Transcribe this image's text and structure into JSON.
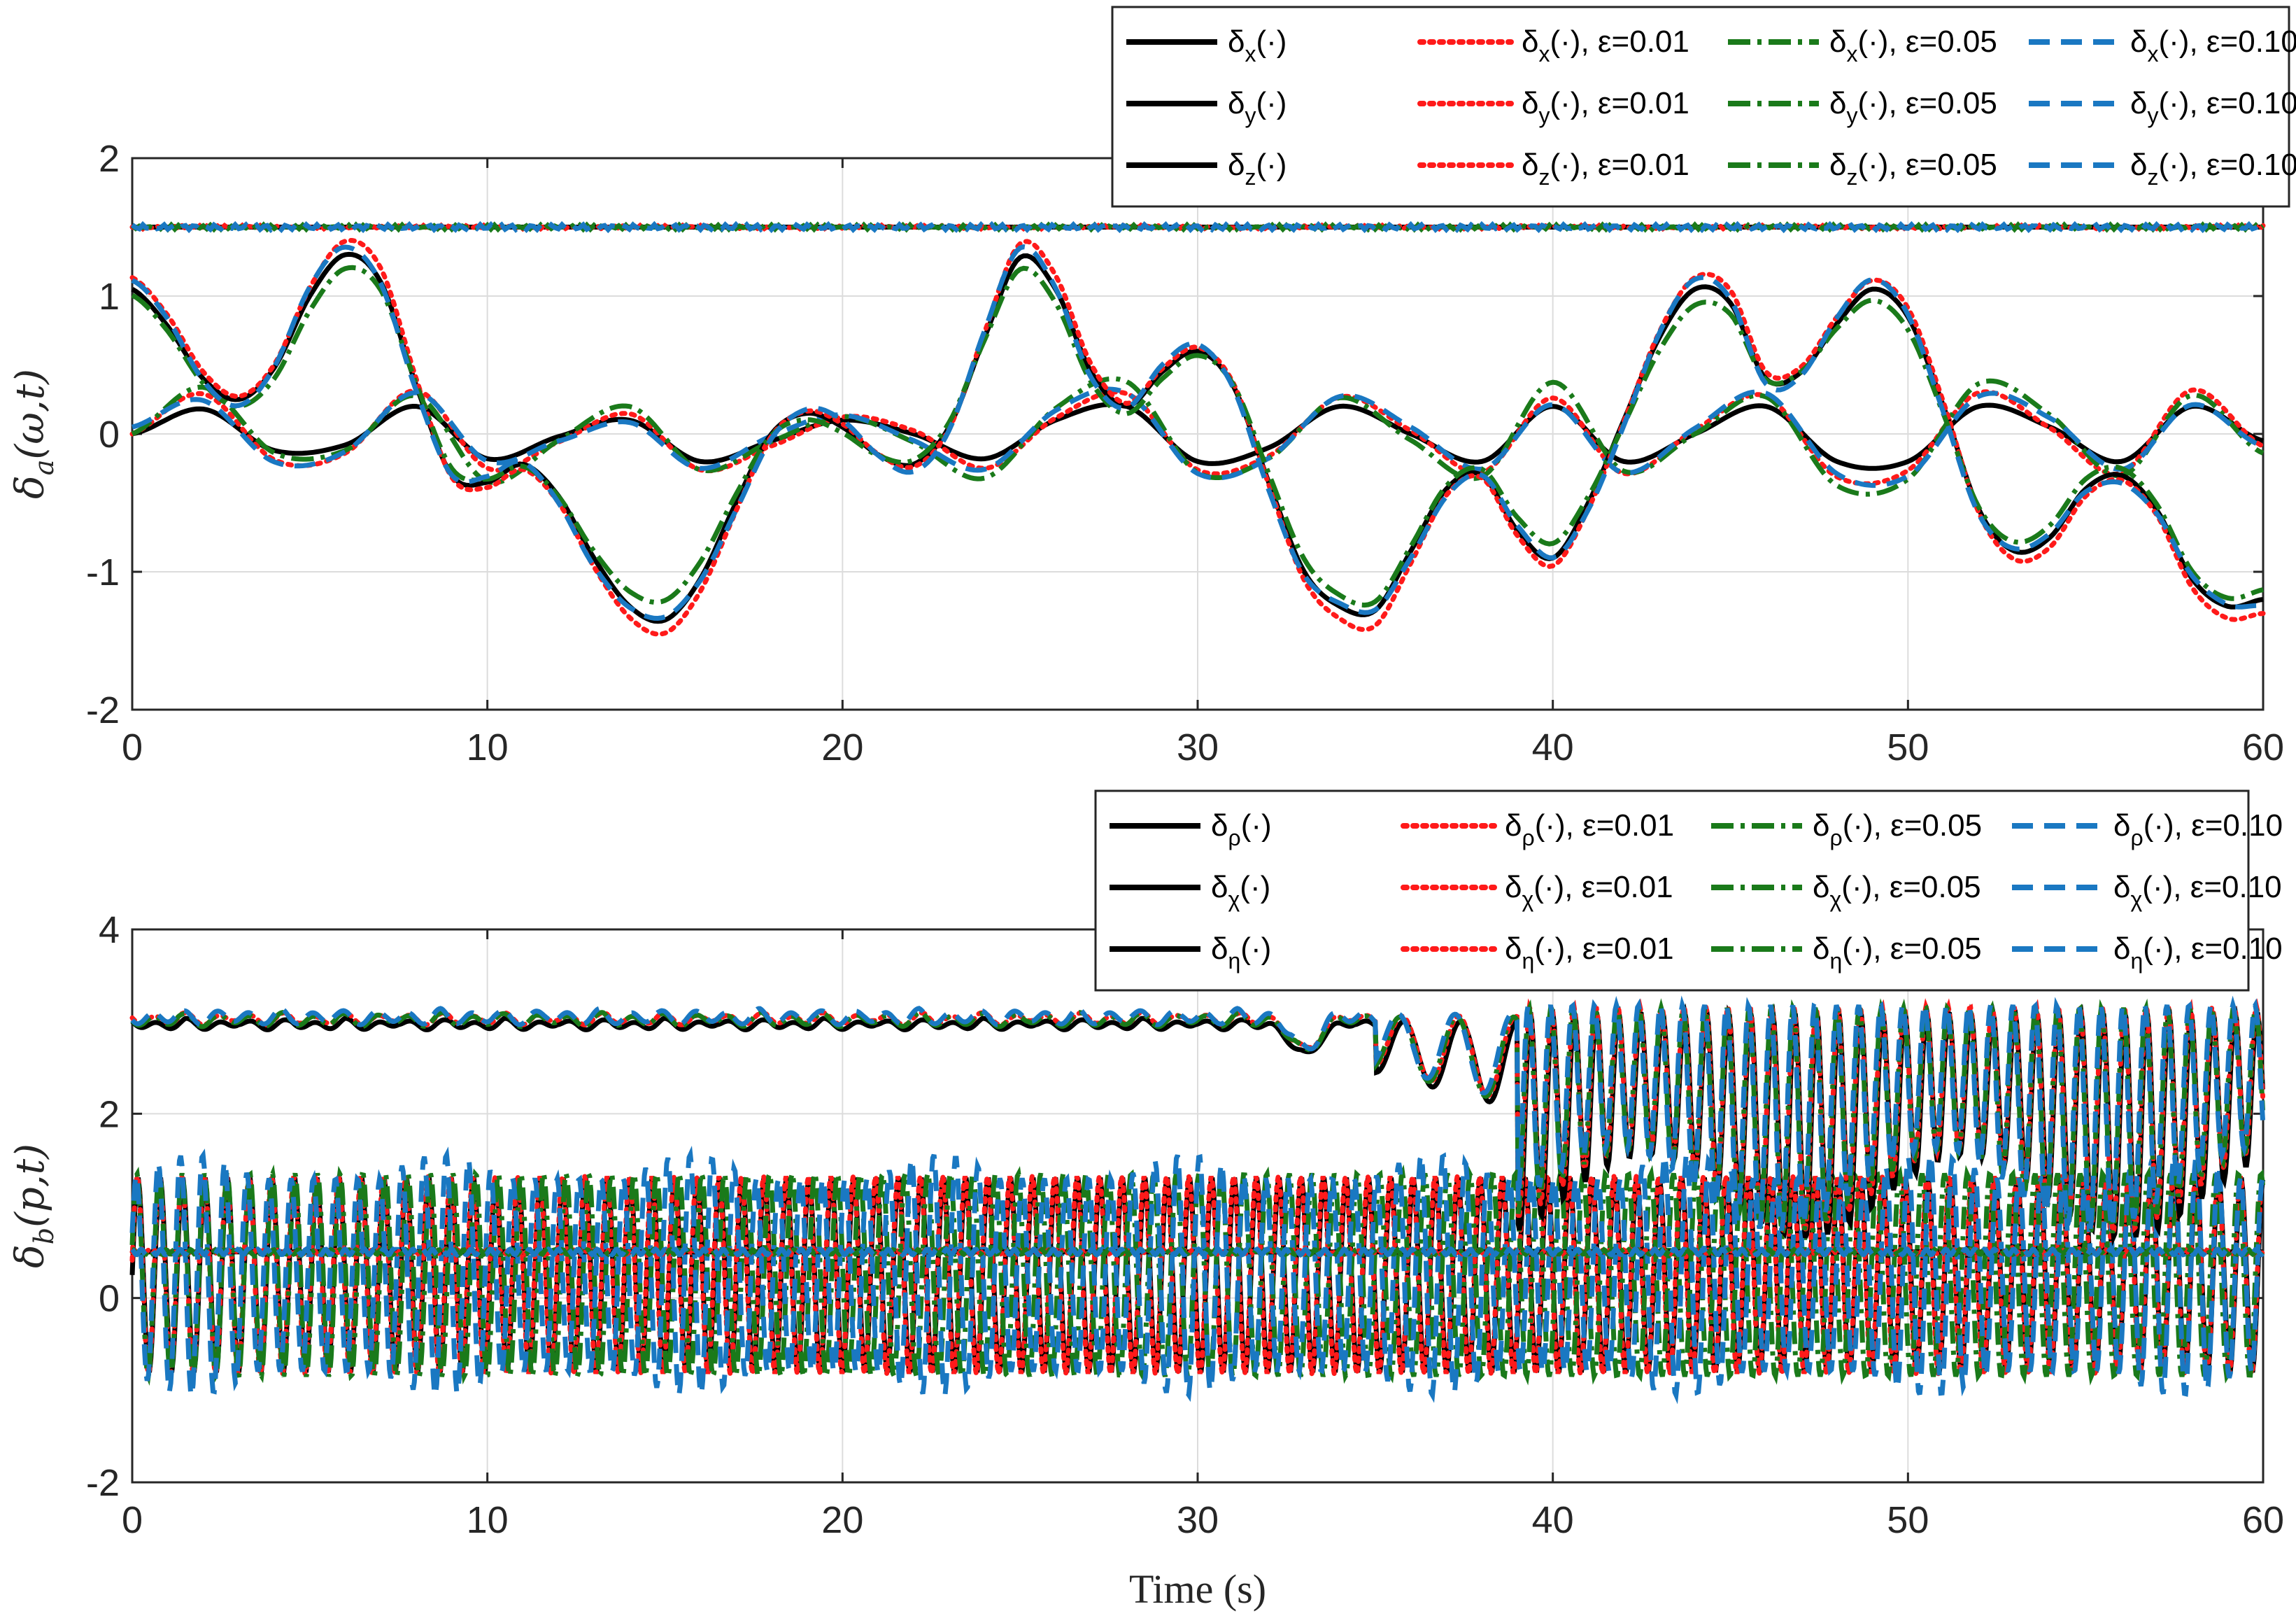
{
  "chart_data": [
    {
      "type": "line",
      "id": "top",
      "ylabel": "δa(ω,t)",
      "ylabel_main": "δ",
      "ylabel_sub": "a",
      "ylabel_rest": "(ω,t)",
      "xlabel": "",
      "xlim": [
        0,
        60
      ],
      "ylim": [
        -2,
        2
      ],
      "xticks": [
        "0",
        "10",
        "20",
        "30",
        "40",
        "50",
        "60"
      ],
      "yticks": [
        "-2",
        "-1",
        "0",
        "1",
        "2"
      ],
      "grid": true,
      "legend_position": "top-right",
      "series_styles": [
        {
          "key": "ref",
          "color": "#000000",
          "dash": "solid",
          "suffix": ""
        },
        {
          "key": "e001",
          "color": "#ff1a1a",
          "dash": "dotted",
          "suffix": ", ε=0.01"
        },
        {
          "key": "e005",
          "color": "#1a7a1a",
          "dash": "dashdot",
          "suffix": ", ε=0.05"
        },
        {
          "key": "e010",
          "color": "#1a78c2",
          "dash": "dashed",
          "suffix": ", ε=0.10"
        }
      ],
      "components": [
        {
          "symbol": "x",
          "description": "bounded sinusoid near 0"
        },
        {
          "symbol": "y",
          "description": "large slow oscillation"
        },
        {
          "symbol": "z",
          "description": "constant approx 1.5"
        }
      ],
      "legend_rows": [
        [
          "δx(·)",
          "δx(·), ε=0.01",
          "δx(·), ε=0.05",
          "δx(·), ε=0.10"
        ],
        [
          "δy(·)",
          "δy(·), ε=0.01",
          "δy(·), ε=0.05",
          "δy(·), ε=0.10"
        ],
        [
          "δz(·)",
          "δz(·), ε=0.01",
          "δz(·), ε=0.05",
          "δz(·), ε=0.10"
        ]
      ],
      "x_component": {
        "x": [
          0,
          2,
          4,
          6,
          8,
          10,
          12,
          14,
          16,
          18,
          20,
          22,
          24,
          26,
          28,
          30,
          32,
          34,
          36,
          38,
          40,
          42,
          44,
          46,
          48,
          50,
          52,
          54,
          56,
          58,
          60
        ],
        "y": [
          0,
          0.18,
          -0.12,
          -0.08,
          0.2,
          -0.18,
          -0.02,
          0.1,
          -0.2,
          -0.05,
          0.1,
          0,
          -0.18,
          0.1,
          0.2,
          -0.2,
          -0.1,
          0.2,
          0,
          -0.2,
          0.2,
          -0.2,
          0,
          0.2,
          -0.2,
          -0.2,
          0.2,
          0.05,
          -0.2,
          0.2,
          -0.05
        ]
      },
      "y_component": {
        "x": [
          0,
          1,
          2,
          3,
          4,
          5,
          6,
          7,
          8,
          9,
          10,
          11,
          12,
          13,
          14,
          15,
          16,
          17,
          18,
          19,
          20,
          21,
          22,
          23,
          24,
          25,
          26,
          27,
          28,
          29,
          30,
          31,
          32,
          33,
          34,
          35,
          36,
          37,
          38,
          39,
          40,
          41,
          42,
          43,
          44,
          45,
          46,
          47,
          48,
          49,
          50,
          51,
          52,
          53,
          54,
          55,
          56,
          57,
          58,
          59,
          60
        ],
        "y": [
          1.05,
          0.78,
          0.4,
          0.25,
          0.48,
          1.0,
          1.3,
          1.1,
          0.35,
          -0.3,
          -0.35,
          -0.22,
          -0.45,
          -0.9,
          -1.25,
          -1.35,
          -1.05,
          -0.5,
          0.0,
          0.15,
          0.05,
          -0.15,
          -0.22,
          0.05,
          0.7,
          1.28,
          1.05,
          0.45,
          0.2,
          0.45,
          0.6,
          0.35,
          -0.35,
          -1.0,
          -1.25,
          -1.28,
          -0.85,
          -0.4,
          -0.3,
          -0.7,
          -0.9,
          -0.5,
          0.1,
          0.7,
          1.05,
          0.95,
          0.4,
          0.45,
          0.8,
          1.05,
          0.85,
          0.2,
          -0.55,
          -0.85,
          -0.75,
          -0.4,
          -0.3,
          -0.55,
          -1.05,
          -1.25,
          -1.2
        ]
      },
      "z_component": {
        "x": [
          0,
          60
        ],
        "y": [
          1.5,
          1.5
        ]
      }
    },
    {
      "type": "line",
      "id": "bottom",
      "ylabel": "δb(p,t)",
      "ylabel_main": "δ",
      "ylabel_sub": "b",
      "ylabel_rest": "(p,t)",
      "xlabel": "Time (s)",
      "xlim": [
        0,
        60
      ],
      "ylim": [
        -2,
        4
      ],
      "xticks": [
        "0",
        "10",
        "20",
        "30",
        "40",
        "50",
        "60"
      ],
      "yticks": [
        "-2",
        "0",
        "2",
        "4"
      ],
      "grid": true,
      "legend_position": "top-right",
      "components": [
        {
          "symbol": "ρ",
          "description": "constant approx 0.5"
        },
        {
          "symbol": "χ",
          "description": "fast oscillation between approx -0.8 and 1.3, period approx 0.6 s"
        },
        {
          "symbol": "η",
          "description": "approx 3.0 until ~35 s, then large oscillations between approx 1 and 3.1"
        }
      ],
      "legend_rows": [
        [
          "δρ(·)",
          "δρ(·), ε=0.01",
          "δρ(·), ε=0.05",
          "δρ(·), ε=0.10"
        ],
        [
          "δχ(·)",
          "δχ(·), ε=0.01",
          "δχ(·), ε=0.05",
          "δχ(·), ε=0.10"
        ],
        [
          "δη(·)",
          "δη(·), ε=0.01",
          "δη(·), ε=0.05",
          "δη(·), ε=0.10"
        ]
      ],
      "rho_level": 0.5,
      "chi_range": [
        -0.8,
        1.3
      ],
      "chi_period_s": 0.63,
      "eta_level": 3.0,
      "eta_transition_s": 35
    }
  ]
}
